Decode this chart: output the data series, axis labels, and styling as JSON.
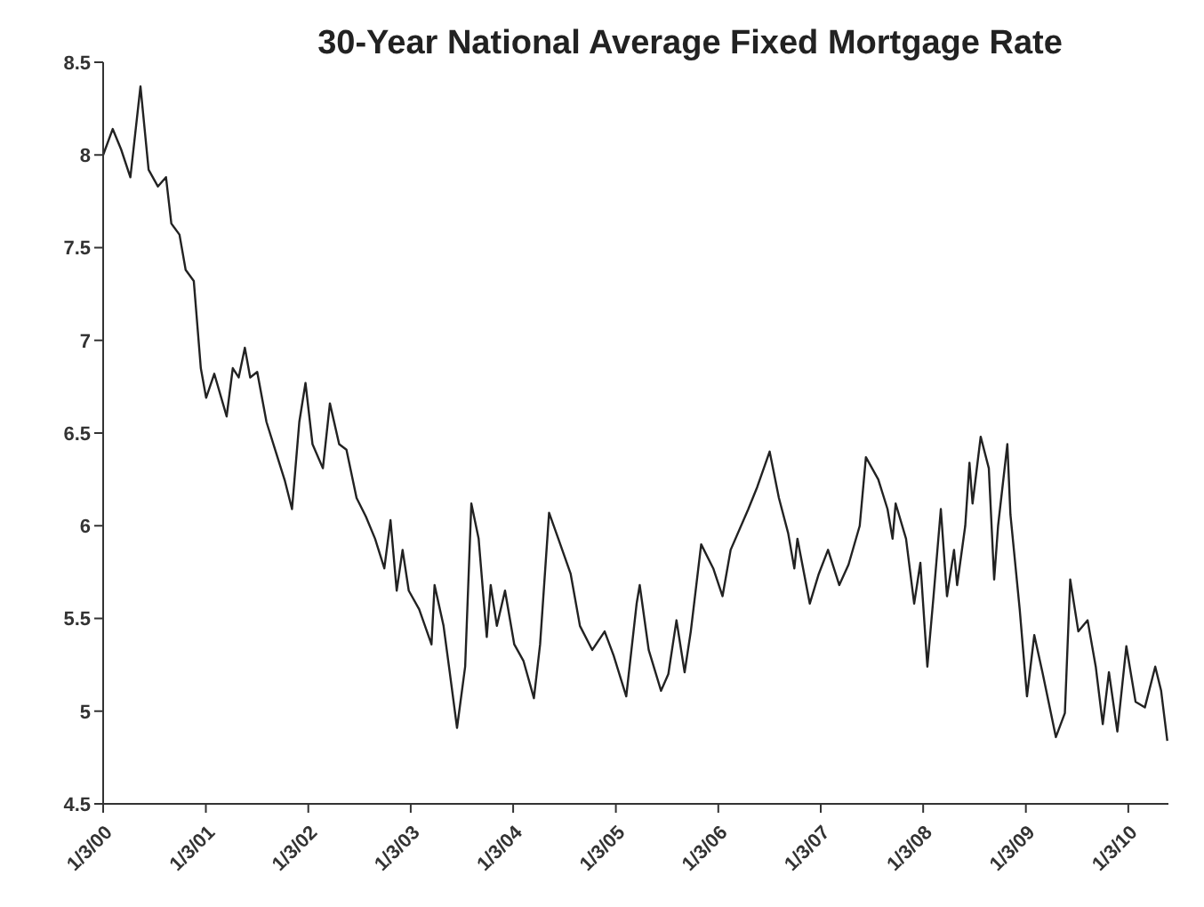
{
  "chart_data": {
    "type": "line",
    "title": "30-Year National Average Fixed Mortgage Rate",
    "x": [
      "2000-01-03",
      "2000-02-06",
      "2000-03-07",
      "2000-04-09",
      "2000-05-15",
      "2000-06-13",
      "2000-07-16",
      "2000-08-14",
      "2000-09-02",
      "2000-10-01",
      "2000-10-23",
      "2000-11-21",
      "2000-12-16",
      "2001-01-04",
      "2001-02-02",
      "2001-03-18",
      "2001-04-09",
      "2001-04-30",
      "2001-05-22",
      "2001-06-10",
      "2001-07-05",
      "2001-08-07",
      "2001-09-09",
      "2001-10-12",
      "2001-11-06",
      "2001-12-02",
      "2001-12-24",
      "2002-01-18",
      "2002-02-24",
      "2002-03-21",
      "2002-04-23",
      "2002-05-19",
      "2002-06-24",
      "2002-07-27",
      "2002-08-29",
      "2002-10-01",
      "2002-10-23",
      "2002-11-14",
      "2002-12-05",
      "2002-12-27",
      "2003-02-02",
      "2003-03-18",
      "2003-03-29",
      "2003-04-30",
      "2003-05-22",
      "2003-06-17",
      "2003-07-16",
      "2003-08-07",
      "2003-09-02",
      "2003-10-01",
      "2003-10-15",
      "2003-11-06",
      "2003-12-05",
      "2004-01-07",
      "2004-02-09",
      "2004-03-17",
      "2004-04-08",
      "2004-05-10",
      "2004-06-12",
      "2004-07-26",
      "2004-08-28",
      "2004-10-11",
      "2004-11-24",
      "2004-12-26",
      "2005-02-09",
      "2005-03-18",
      "2005-03-29",
      "2005-04-30",
      "2005-06-13",
      "2005-07-09",
      "2005-08-07",
      "2005-09-05",
      "2005-09-27",
      "2005-11-03",
      "2005-12-16",
      "2006-01-18",
      "2006-02-16",
      "2006-04-20",
      "2006-05-22",
      "2006-07-05",
      "2006-08-07",
      "2006-09-09",
      "2006-10-01",
      "2006-10-12",
      "2006-11-25",
      "2006-12-27",
      "2007-01-29",
      "2007-03-10",
      "2007-04-12",
      "2007-05-22",
      "2007-06-13",
      "2007-07-27",
      "2007-08-29",
      "2007-09-16",
      "2007-09-27",
      "2007-11-03",
      "2007-12-02",
      "2007-12-24",
      "2008-01-18",
      "2008-02-09",
      "2008-03-06",
      "2008-03-28",
      "2008-04-22",
      "2008-05-03",
      "2008-06-01",
      "2008-06-16",
      "2008-06-27",
      "2008-07-26",
      "2008-08-24",
      "2008-09-12",
      "2008-09-26",
      "2008-10-29",
      "2008-11-09",
      "2008-12-12",
      "2009-01-07",
      "2009-02-02",
      "2009-03-03",
      "2009-04-20",
      "2009-05-22",
      "2009-06-10",
      "2009-07-09",
      "2009-08-11",
      "2009-09-09",
      "2009-10-04",
      "2009-10-26",
      "2009-11-25",
      "2009-12-27",
      "2010-01-29",
      "2010-03-03",
      "2010-04-09",
      "2010-04-30",
      "2010-05-22"
    ],
    "values": [
      8.0,
      8.14,
      8.03,
      7.88,
      8.37,
      7.92,
      7.83,
      7.88,
      7.63,
      7.57,
      7.38,
      7.32,
      6.85,
      6.69,
      6.82,
      6.59,
      6.85,
      6.8,
      6.96,
      6.8,
      6.83,
      6.56,
      6.4,
      6.24,
      6.09,
      6.56,
      6.77,
      6.44,
      6.31,
      6.66,
      6.44,
      6.41,
      6.15,
      6.05,
      5.93,
      5.77,
      6.03,
      5.65,
      5.87,
      5.65,
      5.55,
      5.36,
      5.68,
      5.46,
      5.21,
      4.91,
      5.24,
      6.12,
      5.93,
      5.4,
      5.68,
      5.46,
      5.65,
      5.36,
      5.27,
      5.07,
      5.36,
      6.07,
      5.93,
      5.74,
      5.46,
      5.33,
      5.43,
      5.3,
      5.08,
      5.58,
      5.68,
      5.33,
      5.11,
      5.2,
      5.49,
      5.21,
      5.43,
      5.9,
      5.77,
      5.62,
      5.87,
      6.09,
      6.21,
      6.4,
      6.15,
      5.96,
      5.77,
      5.93,
      5.58,
      5.74,
      5.87,
      5.68,
      5.79,
      6.0,
      6.37,
      6.25,
      6.09,
      5.93,
      6.12,
      5.93,
      5.58,
      5.8,
      5.24,
      5.62,
      6.09,
      5.62,
      5.87,
      5.68,
      6.0,
      6.34,
      6.12,
      6.48,
      6.31,
      5.71,
      6.0,
      6.44,
      6.06,
      5.55,
      5.08,
      5.41,
      5.21,
      4.86,
      4.99,
      5.71,
      5.43,
      5.49,
      5.24,
      4.93,
      5.21,
      4.89,
      5.35,
      5.05,
      5.02,
      5.24,
      5.11,
      4.84
    ],
    "color": "#222222",
    "xlim": [
      "2000-01-03",
      "2010-05-26"
    ],
    "xticks": [
      {
        "value": "2000-01-03",
        "label": "1/3/00"
      },
      {
        "value": "2001-01-03",
        "label": "1/3/01"
      },
      {
        "value": "2002-01-03",
        "label": "1/3/02"
      },
      {
        "value": "2003-01-03",
        "label": "1/3/03"
      },
      {
        "value": "2004-01-03",
        "label": "1/3/04"
      },
      {
        "value": "2005-01-03",
        "label": "1/3/05"
      },
      {
        "value": "2006-01-03",
        "label": "1/3/06"
      },
      {
        "value": "2007-01-03",
        "label": "1/3/07"
      },
      {
        "value": "2008-01-03",
        "label": "1/3/08"
      },
      {
        "value": "2009-01-03",
        "label": "1/3/09"
      },
      {
        "value": "2010-01-03",
        "label": "1/3/10"
      }
    ],
    "ylim": [
      4.5,
      8.5
    ],
    "yticks": [
      4.5,
      5,
      5.5,
      6,
      6.5,
      7,
      7.5,
      8,
      8.5
    ],
    "grid": false,
    "legend": false,
    "marker": "none",
    "line_style": "solid"
  }
}
